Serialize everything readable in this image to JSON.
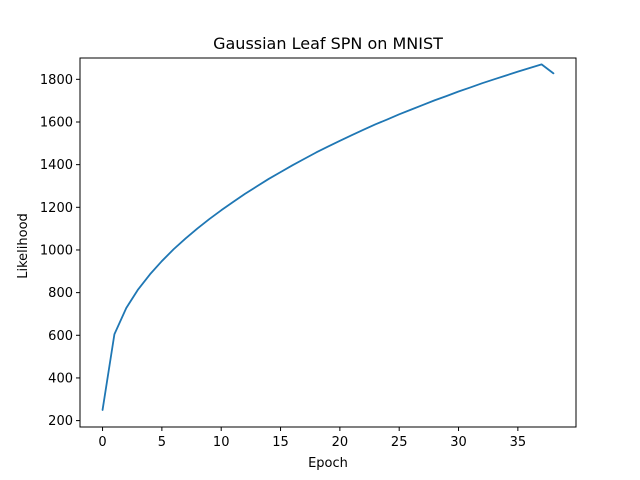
{
  "chart_data": {
    "type": "line",
    "title": "Gaussian Leaf SPN on MNIST",
    "xlabel": "Epoch",
    "ylabel": "Likelihood",
    "xlim": [
      -1.9,
      39.9
    ],
    "ylim": [
      170,
      1900
    ],
    "xticks": [
      0,
      5,
      10,
      15,
      20,
      25,
      30,
      35
    ],
    "yticks": [
      200,
      400,
      600,
      800,
      1000,
      1200,
      1400,
      1600,
      1800
    ],
    "grid": false,
    "legend": "none",
    "series": [
      {
        "color": "#1f77b4",
        "x": [
          0,
          1,
          2,
          3,
          4,
          5,
          6,
          7,
          8,
          9,
          10,
          11,
          12,
          13,
          14,
          15,
          16,
          17,
          18,
          19,
          20,
          21,
          22,
          23,
          24,
          25,
          26,
          27,
          28,
          29,
          30,
          31,
          32,
          33,
          34,
          35,
          36,
          37,
          38
        ],
        "y": [
          250,
          605,
          728,
          815,
          886,
          948,
          1004,
          1054,
          1101,
          1145,
          1186,
          1225,
          1263,
          1298,
          1333,
          1365,
          1397,
          1427,
          1457,
          1485,
          1512,
          1538,
          1564,
          1589,
          1612,
          1636,
          1658,
          1680,
          1702,
          1722,
          1743,
          1762,
          1782,
          1800,
          1818,
          1836,
          1853,
          1870,
          1828
        ]
      }
    ]
  }
}
